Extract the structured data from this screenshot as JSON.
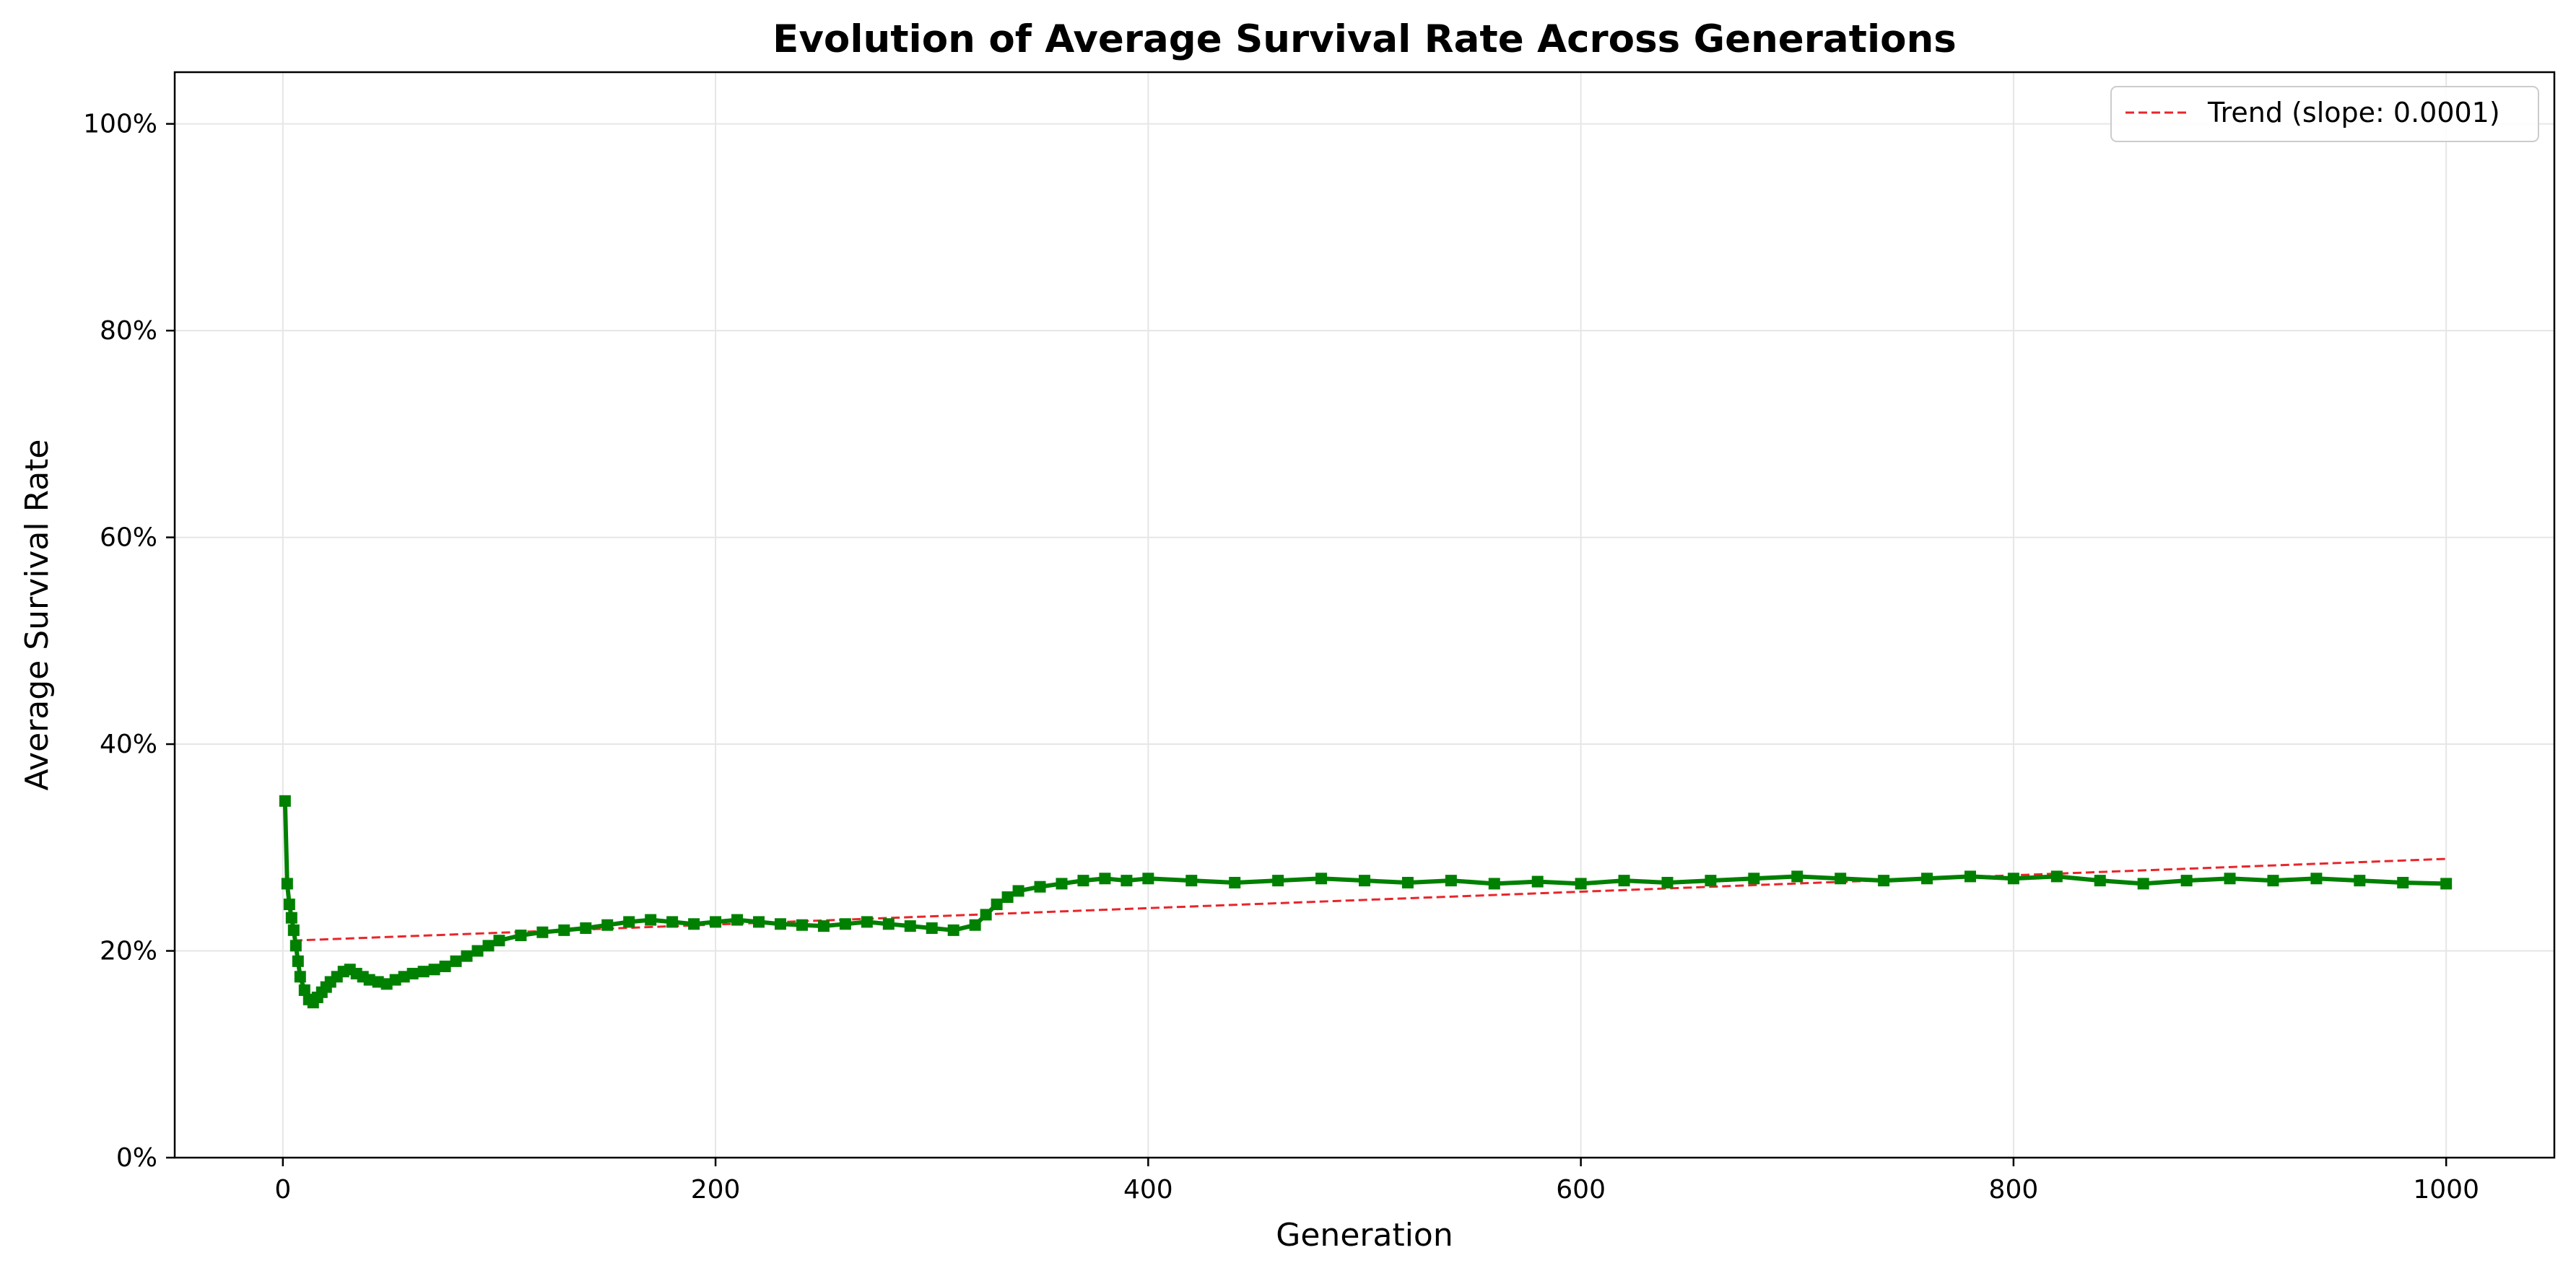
{
  "chart_data": {
    "type": "line",
    "title": "Evolution of Average Survival Rate Across Generations",
    "xlabel": "Generation",
    "ylabel": "Average Survival Rate",
    "xlim": [
      -50,
      1050
    ],
    "ylim": [
      0,
      1.05
    ],
    "x_ticks": [
      0,
      200,
      400,
      600,
      800,
      1000
    ],
    "y_ticks": [
      0,
      0.2,
      0.4,
      0.6,
      0.8,
      1.0
    ],
    "y_tick_format": "percent",
    "grid": true,
    "legend_position": "top-right",
    "series": [
      {
        "role": "data",
        "color": "#008000",
        "marker": "square",
        "x": [
          1,
          2,
          3,
          4,
          5,
          6,
          7,
          8,
          10,
          12,
          14,
          16,
          18,
          20,
          22,
          25,
          28,
          31,
          34,
          37,
          40,
          44,
          48,
          52,
          56,
          60,
          65,
          70,
          75,
          80,
          85,
          90,
          95,
          100,
          110,
          120,
          130,
          140,
          150,
          160,
          170,
          180,
          190,
          200,
          210,
          220,
          230,
          240,
          250,
          260,
          270,
          280,
          290,
          300,
          310,
          320,
          325,
          330,
          335,
          340,
          350,
          360,
          370,
          380,
          390,
          400,
          420,
          440,
          460,
          480,
          500,
          520,
          540,
          560,
          580,
          600,
          620,
          640,
          660,
          680,
          700,
          720,
          740,
          760,
          780,
          800,
          820,
          840,
          860,
          880,
          900,
          920,
          940,
          960,
          980,
          1000
        ],
        "y": [
          0.345,
          0.265,
          0.245,
          0.232,
          0.22,
          0.205,
          0.19,
          0.175,
          0.162,
          0.153,
          0.15,
          0.155,
          0.16,
          0.165,
          0.17,
          0.175,
          0.18,
          0.182,
          0.178,
          0.175,
          0.172,
          0.17,
          0.168,
          0.172,
          0.175,
          0.178,
          0.18,
          0.182,
          0.185,
          0.19,
          0.195,
          0.2,
          0.205,
          0.21,
          0.215,
          0.218,
          0.22,
          0.222,
          0.225,
          0.228,
          0.23,
          0.228,
          0.226,
          0.228,
          0.23,
          0.228,
          0.226,
          0.225,
          0.224,
          0.226,
          0.228,
          0.226,
          0.224,
          0.222,
          0.22,
          0.225,
          0.235,
          0.245,
          0.252,
          0.258,
          0.262,
          0.265,
          0.268,
          0.27,
          0.268,
          0.27,
          0.268,
          0.266,
          0.268,
          0.27,
          0.268,
          0.266,
          0.268,
          0.265,
          0.267,
          0.265,
          0.268,
          0.266,
          0.268,
          0.27,
          0.272,
          0.27,
          0.268,
          0.27,
          0.272,
          0.27,
          0.272,
          0.268,
          0.265,
          0.268,
          0.27,
          0.268,
          0.27,
          0.268,
          0.266,
          0.265
        ]
      },
      {
        "role": "trend",
        "name": "Trend (slope: 0.0001)",
        "color": "#e8262b",
        "style": "dashed",
        "x": [
          5,
          1000
        ],
        "y": [
          0.21,
          0.289
        ]
      }
    ]
  }
}
